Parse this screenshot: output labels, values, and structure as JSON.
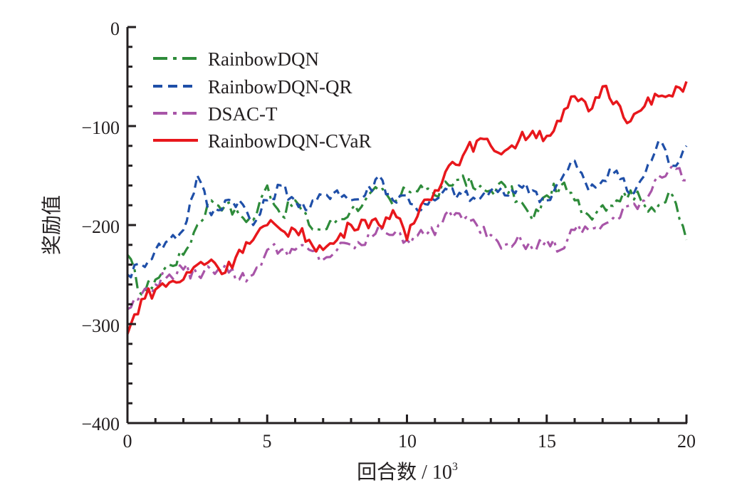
{
  "chart_data": {
    "type": "line",
    "title": "",
    "xlabel": "回合数 / 10",
    "xlabel_superscript": "3",
    "ylabel": "奖励值",
    "xlim": [
      0,
      20
    ],
    "ylim": [
      -400,
      0
    ],
    "xticks": [
      0,
      5,
      10,
      15,
      20
    ],
    "xtick_labels": [
      "0",
      "5",
      "10",
      "15",
      "20"
    ],
    "x_minor_step": 1,
    "yticks": [
      0,
      -100,
      -200,
      -300,
      -400
    ],
    "ytick_labels": [
      "0",
      "−100",
      "−200",
      "−300",
      "−400"
    ],
    "y_minor_step": 20,
    "grid": false,
    "legend_position": "top-left",
    "x": [
      0,
      0.5,
      1,
      1.5,
      2,
      2.5,
      3,
      3.5,
      4,
      4.5,
      5,
      5.5,
      6,
      6.5,
      7,
      7.5,
      8,
      8.5,
      9,
      9.5,
      10,
      10.5,
      11,
      11.5,
      12,
      12.5,
      13,
      13.5,
      14,
      14.5,
      15,
      15.5,
      16,
      16.5,
      17,
      17.5,
      18,
      18.5,
      19,
      19.5,
      20
    ],
    "series": [
      {
        "name": "RainbowDQN",
        "color": "#2e8b3a",
        "style": "dash-dot",
        "values": [
          -230,
          -270,
          -255,
          -240,
          -230,
          -200,
          -175,
          -180,
          -190,
          -195,
          -160,
          -190,
          -175,
          -200,
          -205,
          -195,
          -185,
          -175,
          -165,
          -180,
          -165,
          -160,
          -170,
          -160,
          -150,
          -165,
          -165,
          -160,
          -175,
          -195,
          -170,
          -160,
          -175,
          -190,
          -180,
          -175,
          -165,
          -180,
          -180,
          -170,
          -215
        ]
      },
      {
        "name": "RainbowDQN-QR",
        "color": "#1f4fa8",
        "style": "dashed",
        "values": [
          -250,
          -240,
          -225,
          -215,
          -205,
          -150,
          -190,
          -175,
          -175,
          -200,
          -175,
          -160,
          -175,
          -185,
          -170,
          -165,
          -175,
          -170,
          -150,
          -175,
          -170,
          -185,
          -175,
          -165,
          -170,
          -175,
          -165,
          -170,
          -160,
          -165,
          -175,
          -155,
          -135,
          -165,
          -155,
          -145,
          -170,
          -150,
          -115,
          -140,
          -120
        ]
      },
      {
        "name": "DSAC-T",
        "color": "#a855a8",
        "style": "dash-dot",
        "values": [
          -285,
          -270,
          -260,
          -250,
          -245,
          -250,
          -245,
          -240,
          -255,
          -250,
          -225,
          -225,
          -225,
          -225,
          -235,
          -225,
          -220,
          -220,
          -200,
          -210,
          -215,
          -205,
          -210,
          -185,
          -195,
          -200,
          -210,
          -220,
          -210,
          -225,
          -215,
          -225,
          -205,
          -205,
          -200,
          -195,
          -180,
          -175,
          -150,
          -140,
          -155
        ]
      },
      {
        "name": "RainbowDQN-CVaR",
        "color": "#e8171c",
        "style": "solid",
        "values": [
          -310,
          -275,
          -265,
          -258,
          -255,
          -240,
          -235,
          -248,
          -225,
          -215,
          -200,
          -205,
          -205,
          -215,
          -225,
          -215,
          -200,
          -195,
          -200,
          -185,
          -215,
          -180,
          -165,
          -140,
          -130,
          -115,
          -120,
          -125,
          -115,
          -105,
          -110,
          -95,
          -70,
          -85,
          -60,
          -75,
          -95,
          -80,
          -70,
          -70,
          -55
        ]
      }
    ]
  }
}
